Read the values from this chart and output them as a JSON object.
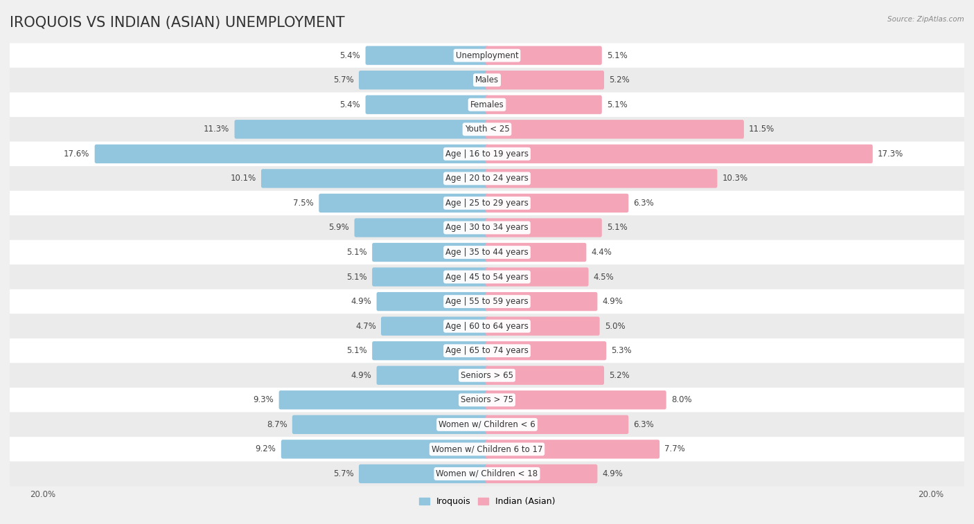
{
  "title": "IROQUOIS VS INDIAN (ASIAN) UNEMPLOYMENT",
  "source": "Source: ZipAtlas.com",
  "categories": [
    "Unemployment",
    "Males",
    "Females",
    "Youth < 25",
    "Age | 16 to 19 years",
    "Age | 20 to 24 years",
    "Age | 25 to 29 years",
    "Age | 30 to 34 years",
    "Age | 35 to 44 years",
    "Age | 45 to 54 years",
    "Age | 55 to 59 years",
    "Age | 60 to 64 years",
    "Age | 65 to 74 years",
    "Seniors > 65",
    "Seniors > 75",
    "Women w/ Children < 6",
    "Women w/ Children 6 to 17",
    "Women w/ Children < 18"
  ],
  "iroquois": [
    5.4,
    5.7,
    5.4,
    11.3,
    17.6,
    10.1,
    7.5,
    5.9,
    5.1,
    5.1,
    4.9,
    4.7,
    5.1,
    4.9,
    9.3,
    8.7,
    9.2,
    5.7
  ],
  "indian": [
    5.1,
    5.2,
    5.1,
    11.5,
    17.3,
    10.3,
    6.3,
    5.1,
    4.4,
    4.5,
    4.9,
    5.0,
    5.3,
    5.2,
    8.0,
    6.3,
    7.7,
    4.9
  ],
  "iroquois_color": "#92c5de",
  "indian_color": "#f4a6b8",
  "xlim": 20.0,
  "row_colors": [
    "#ffffff",
    "#ebebeb"
  ],
  "title_fontsize": 15,
  "label_fontsize": 8.5,
  "value_fontsize": 8.5,
  "legend_fontsize": 9,
  "fig_bg": "#f0f0f0"
}
